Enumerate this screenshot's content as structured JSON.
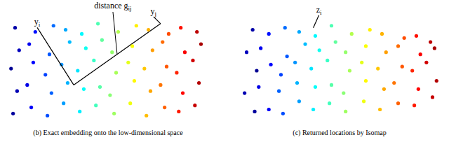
{
  "chart_data": [
    {
      "type": "scatter",
      "caption": "(b) Exact embedding onto the low-dimensional space",
      "tick_labels": false,
      "xlim": [
        0,
        10
      ],
      "ylim": [
        0,
        5
      ],
      "x": [
        0.3,
        0.5,
        0.2,
        0.6,
        0.4,
        1.2,
        1.0,
        1.3,
        1.1,
        1.4,
        2.0,
        2.2,
        1.9,
        2.1,
        2.3,
        2.8,
        3.0,
        2.7,
        3.1,
        2.9,
        3.6,
        3.8,
        3.5,
        3.9,
        3.7,
        4.4,
        4.6,
        4.3,
        4.7,
        4.5,
        5.3,
        5.1,
        5.4,
        5.2,
        5.5,
        6.1,
        6.3,
        6.0,
        6.2,
        6.4,
        6.9,
        7.1,
        6.8,
        7.2,
        7.0,
        7.8,
        7.6,
        7.9,
        7.7,
        8.0,
        8.5,
        8.7,
        8.4,
        8.8,
        8.6,
        9.3,
        9.5,
        9.2,
        9.6,
        9.4
      ],
      "y": [
        0.4,
        1.5,
        2.6,
        3.5,
        4.6,
        0.7,
        1.8,
        2.9,
        3.8,
        4.4,
        0.3,
        1.4,
        2.3,
        3.3,
        4.7,
        0.9,
        1.9,
        2.8,
        3.9,
        4.5,
        0.5,
        1.6,
        2.5,
        3.6,
        4.3,
        0.8,
        1.7,
        3.0,
        4.0,
        4.8,
        0.4,
        1.3,
        2.4,
        3.4,
        4.4,
        0.9,
        2.0,
        2.9,
        3.7,
        4.7,
        0.3,
        1.5,
        2.6,
        3.5,
        4.5,
        0.7,
        1.8,
        2.7,
        3.9,
        4.3,
        0.5,
        1.4,
        2.4,
        3.4,
        4.6,
        0.8,
        1.9,
        3.0,
        3.8,
        4.4
      ],
      "annotations": [
        {
          "label": "y",
          "subscript": "i",
          "x": 3.3,
          "y": 1.8
        },
        {
          "label": "y",
          "subscript": "j",
          "x": 7.6,
          "y": 4.8
        }
      ],
      "distance": {
        "label": "distance g",
        "subscript": "ij"
      }
    },
    {
      "type": "scatter",
      "caption": "(c) Returned locations by Isomap",
      "tick_labels": false,
      "xlim": [
        0,
        10
      ],
      "ylim": [
        0,
        5
      ],
      "x": [
        0.8,
        0.3,
        0.9,
        0.4,
        0.7,
        1.5,
        1.0,
        1.6,
        1.1,
        1.5,
        2.2,
        2.0,
        2.1,
        2.4,
        2.3,
        3.0,
        2.9,
        2.8,
        3.3,
        3.0,
        3.7,
        3.8,
        3.6,
        4.0,
        3.8,
        4.5,
        4.6,
        4.4,
        4.8,
        4.6,
        5.3,
        5.2,
        5.5,
        5.3,
        5.6,
        6.2,
        6.3,
        6.1,
        6.3,
        6.5,
        7.0,
        7.2,
        6.9,
        7.3,
        7.1,
        7.9,
        7.7,
        8.1,
        7.9,
        8.2,
        8.7,
        8.9,
        8.6,
        9.0,
        8.8,
        9.6,
        9.8,
        9.3,
        9.7,
        9.5
      ],
      "y": [
        0.5,
        1.4,
        2.5,
        3.4,
        4.5,
        0.6,
        1.7,
        2.8,
        3.6,
        4.3,
        0.4,
        1.5,
        2.3,
        3.2,
        4.6,
        1.0,
        1.9,
        2.9,
        3.8,
        4.4,
        0.6,
        1.7,
        2.6,
        3.5,
        4.2,
        0.9,
        1.8,
        3.0,
        3.9,
        4.7,
        0.5,
        1.4,
        2.5,
        3.4,
        4.3,
        1.0,
        2.0,
        2.9,
        3.7,
        4.5,
        0.6,
        1.6,
        2.6,
        3.4,
        4.3,
        0.9,
        1.9,
        2.7,
        3.7,
        4.1,
        0.8,
        1.6,
        2.5,
        3.3,
        4.2,
        1.2,
        2.0,
        2.9,
        3.6,
        3.9
      ],
      "color_values": [
        0.3,
        0.5,
        0.2,
        0.6,
        0.4,
        1.2,
        1.0,
        1.3,
        1.1,
        1.4,
        2.0,
        2.2,
        1.9,
        2.1,
        2.3,
        2.8,
        3.0,
        2.7,
        3.1,
        2.9,
        3.6,
        3.8,
        3.5,
        3.9,
        3.7,
        4.4,
        4.6,
        4.3,
        4.7,
        4.5,
        5.3,
        5.1,
        5.4,
        5.2,
        5.5,
        6.1,
        6.3,
        6.0,
        6.2,
        6.4,
        6.9,
        7.1,
        6.8,
        7.2,
        7.0,
        7.8,
        7.6,
        7.9,
        7.7,
        8.0,
        8.5,
        8.7,
        8.4,
        8.8,
        8.6,
        9.3,
        9.5,
        9.2,
        9.6,
        9.4
      ],
      "annotations": [
        {
          "label": "z",
          "subscript": "i",
          "x": 3.7,
          "y": 4.6
        }
      ]
    }
  ]
}
